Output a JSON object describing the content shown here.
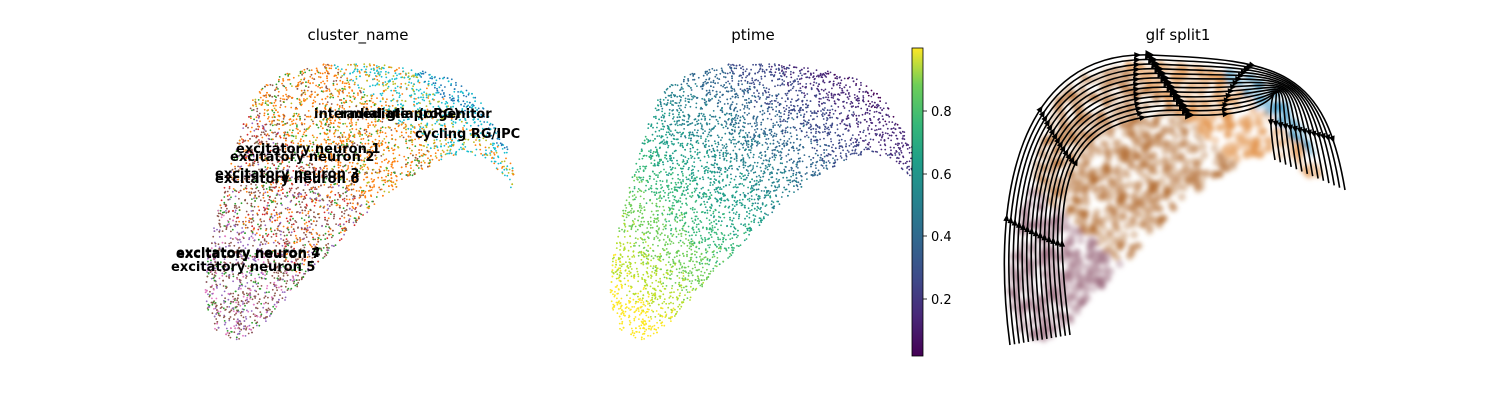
{
  "chart_data": [
    {
      "type": "scatter",
      "title": "cluster_name",
      "categorical": true,
      "cluster_labels": [
        "intermediate progenitor",
        "radial glia (oRG)",
        "cycling RG/IPC",
        "excitatory neuron 1",
        "excitatory neuron 2",
        "excitatory neuron 3",
        "excitatory neuron 6",
        "excitatory neuron 4",
        "excitatory neuron 7",
        "excitatory neuron 5"
      ],
      "legend": "on data",
      "grid": false
    },
    {
      "type": "scatter",
      "title": "ptime",
      "continuous": true,
      "colormap": "viridis",
      "colorbar": {
        "ticks": [
          "0.2",
          "0.4",
          "0.6",
          "0.8"
        ],
        "range": [
          0.01,
          0.99
        ]
      },
      "grid": false
    },
    {
      "type": "scatter",
      "title": "glf split1",
      "overlay": "streamlines",
      "grid": false
    }
  ]
}
